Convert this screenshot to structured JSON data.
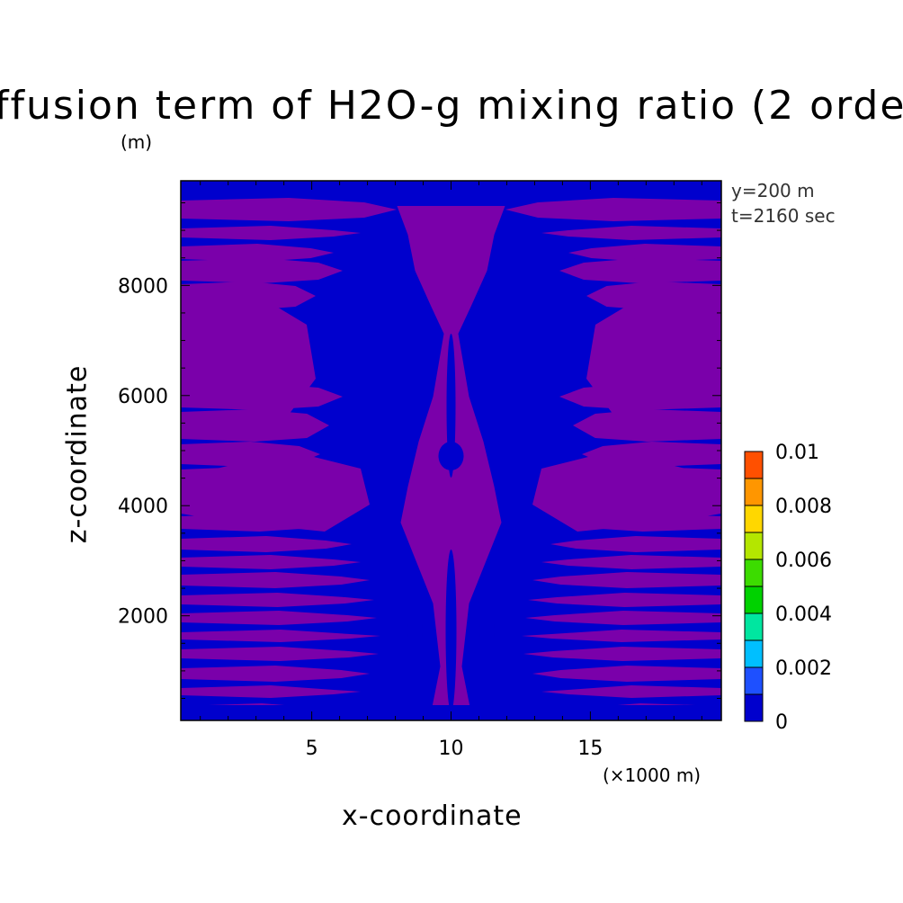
{
  "chart_data": {
    "type": "heatmap",
    "title": "ffusion term of H2O-g mixing ratio (2 orde",
    "xlabel": "x-coordinate",
    "ylabel": "z-coordinate",
    "x_unit": "(×1000 m)",
    "y_unit": "(m)",
    "annotations": [
      "y=200 m",
      "t=2160 sec"
    ],
    "x_ticks": [
      5,
      10,
      15
    ],
    "y_ticks": [
      2000,
      4000,
      6000,
      8000
    ],
    "xlim": [
      0.3,
      19.7
    ],
    "ylim": [
      100,
      9900
    ],
    "grid": false,
    "colorbar": {
      "levels": [
        0,
        0.001,
        0.002,
        0.003,
        0.004,
        0.005,
        0.006,
        0.007,
        0.008,
        0.009,
        0.01
      ],
      "tick_labels": [
        "0",
        "0.002",
        "0.004",
        "0.006",
        "0.008",
        "0.01"
      ],
      "colors": [
        "#0000cd",
        "#1e50ff",
        "#00bfff",
        "#00e6a0",
        "#00d200",
        "#3cdc00",
        "#b4e600",
        "#ffd700",
        "#ff9600",
        "#ff5000",
        "#ff1e1e"
      ]
    },
    "field_colors": {
      "low": "#0000cd",
      "high": "#7a00aa"
    },
    "field_note": "contour fill: blue below lowest contour level, purple above; mirrored about x=10"
  }
}
